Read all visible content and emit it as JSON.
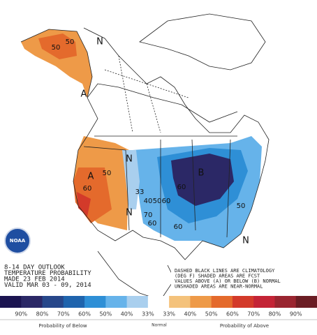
{
  "map": {
    "labels": [
      "A",
      "N",
      "50",
      "A",
      "N",
      "50",
      "60",
      "33",
      "40",
      "50",
      "60",
      "70",
      "60",
      "N",
      "B",
      "50",
      "60",
      "50",
      "N",
      "60"
    ],
    "logo": "NOAA",
    "info": [
      "8-14 DAY OUTLOOK",
      "TEMPERATURE PROBABILITY",
      "MADE 23 FEB 2014",
      "VALID MAR 03 - 09, 2014"
    ],
    "notes": [
      "DASHED BLACK LINES ARE CLIMATOLOGY",
      "(DEG F) SHADED AREAS ARE FCST",
      "VALUES ABOVE (A) OR BELOW (B) NORMAL",
      "UNSHADED AREAS ARE NEAR-NORMAL"
    ]
  },
  "legend": {
    "colors": [
      "#1b1450",
      "#2b2866",
      "#27478a",
      "#1f64ad",
      "#2e8fd6",
      "#66b3ea",
      "#a9cfee",
      "#ffffff",
      "#f4c27b",
      "#ee9a48",
      "#e46a2c",
      "#d33a2a",
      "#c42436",
      "#9a2530",
      "#6b1d24"
    ],
    "labels": [
      "90%",
      "80%",
      "70%",
      "60%",
      "50%",
      "40%",
      "33%",
      "33%",
      "40%",
      "50%",
      "60%",
      "70%",
      "80%",
      "90%"
    ],
    "below": "Probability of Below",
    "normal": "Normal",
    "above": "Probability of Above"
  }
}
